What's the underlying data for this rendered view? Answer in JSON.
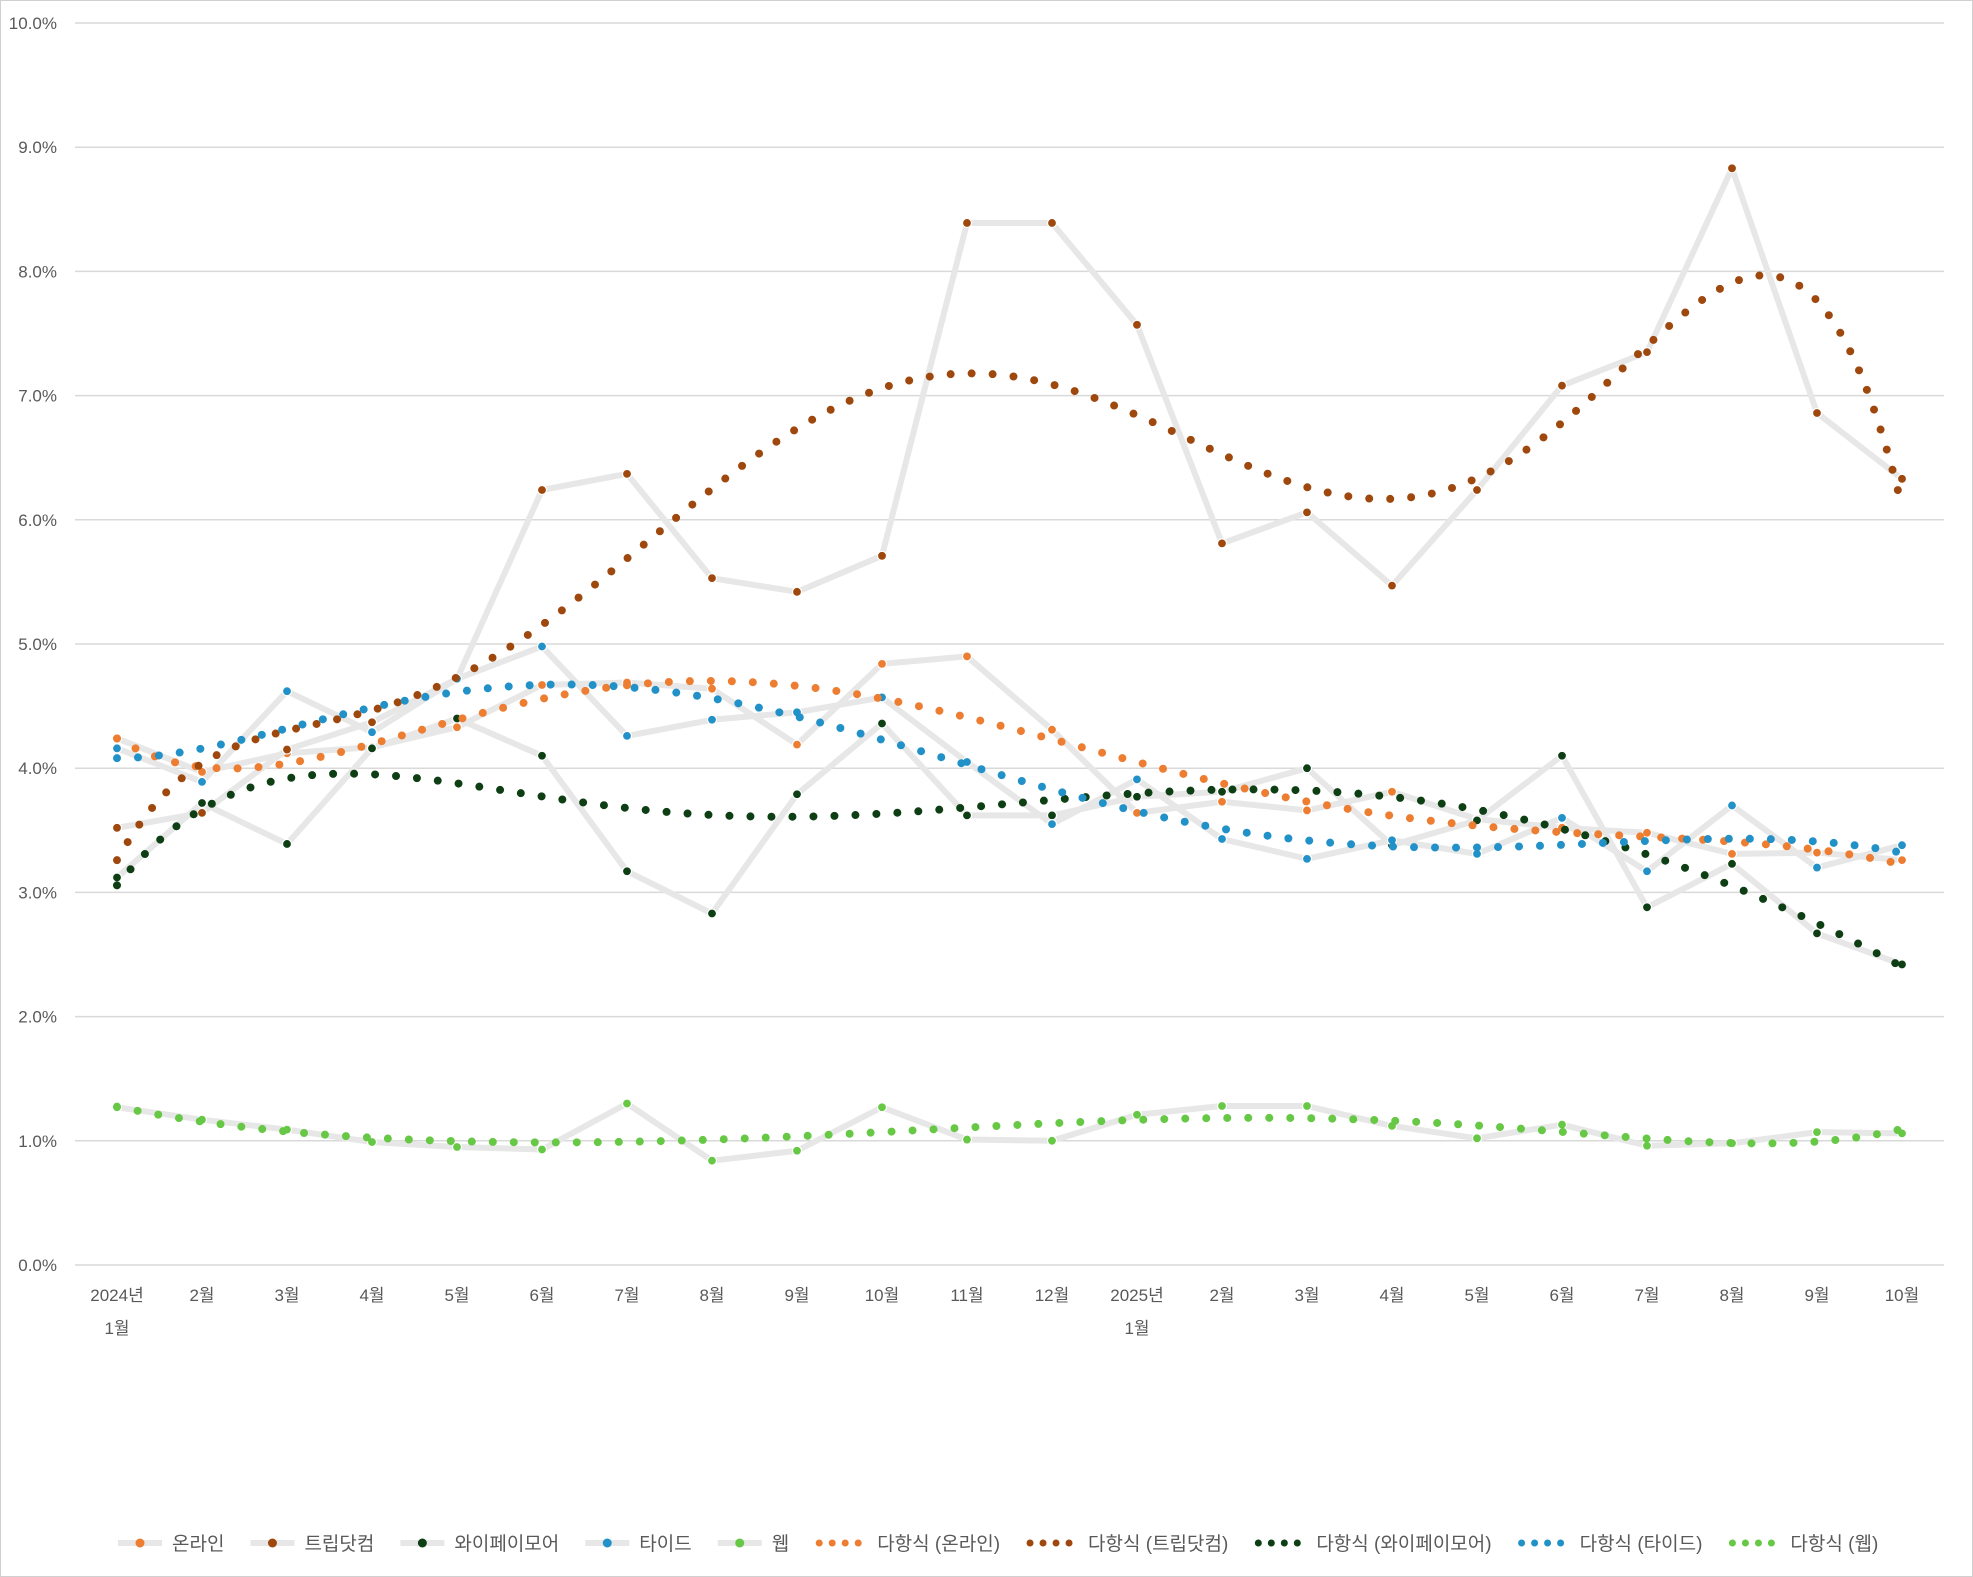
{
  "chart_data": {
    "type": "line",
    "title": "",
    "xlabel": "",
    "ylabel": "",
    "ylim": [
      0,
      10
    ],
    "y_ticks": [
      "0.0%",
      "1.0%",
      "2.0%",
      "3.0%",
      "4.0%",
      "5.0%",
      "6.0%",
      "7.0%",
      "8.0%",
      "9.0%",
      "10.0%"
    ],
    "grid": true,
    "legend_position": "bottom",
    "categories": [
      [
        "2024년",
        "1월"
      ],
      [
        "2월"
      ],
      [
        "3월"
      ],
      [
        "4월"
      ],
      [
        "5월"
      ],
      [
        "6월"
      ],
      [
        "7월"
      ],
      [
        "8월"
      ],
      [
        "9월"
      ],
      [
        "10월"
      ],
      [
        "11월"
      ],
      [
        "12월"
      ],
      [
        "2025년",
        "1월"
      ],
      [
        "2월"
      ],
      [
        "3월"
      ],
      [
        "4월"
      ],
      [
        "5월"
      ],
      [
        "6월"
      ],
      [
        "7월"
      ],
      [
        "8월"
      ],
      [
        "9월"
      ],
      [
        "10월"
      ]
    ],
    "series": [
      {
        "name": "온라인",
        "color": "#ED7D31",
        "values": [
          4.24,
          3.97,
          4.12,
          4.17,
          4.33,
          4.67,
          4.69,
          4.64,
          4.19,
          4.84,
          4.9,
          4.31,
          3.64,
          3.73,
          3.66,
          3.81,
          3.59,
          3.52,
          3.48,
          3.31,
          3.32,
          3.26
        ]
      },
      {
        "name": "트립닷컴",
        "color": "#9E480E",
        "values": [
          3.52,
          3.64,
          4.15,
          4.37,
          4.72,
          6.24,
          6.37,
          5.53,
          5.42,
          5.71,
          8.39,
          8.39,
          7.57,
          5.81,
          6.06,
          5.47,
          6.24,
          7.08,
          7.35,
          8.83,
          6.86,
          6.33
        ]
      },
      {
        "name": "와이페이모어",
        "color": "#0E3F14",
        "values": [
          3.12,
          3.72,
          3.39,
          4.16,
          4.4,
          4.1,
          3.17,
          2.83,
          3.79,
          4.36,
          3.62,
          3.62,
          3.77,
          3.81,
          4.0,
          3.38,
          3.58,
          4.1,
          2.88,
          3.23,
          2.67,
          2.42
        ]
      },
      {
        "name": "타이드",
        "color": "#2191C8",
        "values": [
          4.16,
          3.89,
          4.62,
          4.29,
          4.72,
          4.98,
          4.26,
          4.39,
          4.45,
          4.57,
          4.05,
          3.55,
          3.91,
          3.43,
          3.27,
          3.42,
          3.31,
          3.6,
          3.17,
          3.7,
          3.2,
          3.38
        ]
      },
      {
        "name": "웹",
        "color": "#66C845",
        "values": [
          1.27,
          1.17,
          1.09,
          0.99,
          0.95,
          0.93,
          1.3,
          0.84,
          0.92,
          1.27,
          1.01,
          1.0,
          1.21,
          1.28,
          1.28,
          1.12,
          1.02,
          1.13,
          0.96,
          0.98,
          1.07,
          1.06
        ]
      }
    ],
    "trendlines": [
      {
        "name": "다항식 (온라인)",
        "of": 0,
        "type": "polynomial",
        "order": 6
      },
      {
        "name": "다항식 (트립닷컴)",
        "of": 1,
        "type": "polynomial",
        "order": 6
      },
      {
        "name": "다항식 (와이페이모어)",
        "of": 2,
        "type": "polynomial",
        "order": 6
      },
      {
        "name": "다항식 (타이드)",
        "of": 3,
        "type": "polynomial",
        "order": 6
      },
      {
        "name": "다항식 (웹)",
        "of": 4,
        "type": "polynomial",
        "order": 6
      }
    ],
    "line_color": "#E7E7E7",
    "grid_color": "#D9D9D9"
  }
}
